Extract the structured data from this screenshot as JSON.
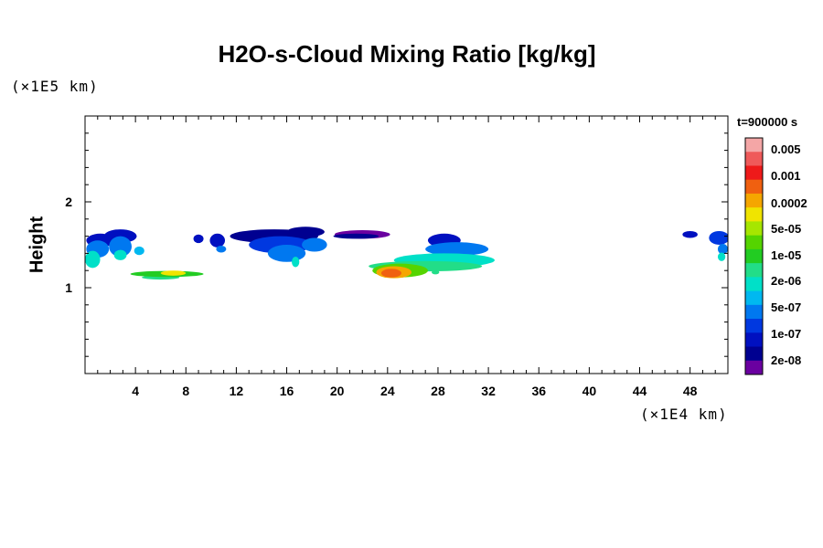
{
  "chart_data": {
    "type": "heatmap",
    "title": "H2O-s-Cloud Mixing Ratio [kg/kg]",
    "ylabel": "Height",
    "y_unit": "(×1E5 km)",
    "x_unit": "(×1E4 km)",
    "time_label": "t=900000 s",
    "xlim": [
      0,
      51
    ],
    "ylim": [
      0,
      3
    ],
    "x_ticks": [
      "4",
      "8",
      "12",
      "16",
      "20",
      "24",
      "28",
      "32",
      "36",
      "40",
      "44",
      "48"
    ],
    "y_ticks": [
      "1",
      "2"
    ],
    "colorbar": {
      "labels": [
        "0.005",
        "0.001",
        "0.0002",
        "5e-05",
        "1e-05",
        "2e-06",
        "5e-07",
        "1e-07",
        "2e-08"
      ],
      "colors": [
        "#f4a6a6",
        "#ef5a5a",
        "#ee1a1a",
        "#f06010",
        "#f5a600",
        "#f0e400",
        "#a6e600",
        "#55d400",
        "#22cc22",
        "#22dd88",
        "#00e0c8",
        "#00b8f0",
        "#0078f0",
        "#0038e0",
        "#0010c0",
        "#000090",
        "#6a00a0"
      ]
    },
    "regions": [
      {
        "cx": 1.2,
        "cy": 1.55,
        "rx": 1.1,
        "ry": 0.08,
        "level": 14
      },
      {
        "cx": 1.0,
        "cy": 1.45,
        "rx": 0.9,
        "ry": 0.1,
        "level": 12
      },
      {
        "cx": 0.6,
        "cy": 1.33,
        "rx": 0.6,
        "ry": 0.1,
        "level": 10
      },
      {
        "cx": 2.8,
        "cy": 1.6,
        "rx": 1.3,
        "ry": 0.08,
        "level": 14
      },
      {
        "cx": 2.8,
        "cy": 1.48,
        "rx": 0.9,
        "ry": 0.12,
        "level": 12
      },
      {
        "cx": 2.8,
        "cy": 1.38,
        "rx": 0.5,
        "ry": 0.06,
        "level": 10
      },
      {
        "cx": 4.3,
        "cy": 1.43,
        "rx": 0.4,
        "ry": 0.05,
        "level": 11
      },
      {
        "cx": 6.5,
        "cy": 1.16,
        "rx": 2.9,
        "ry": 0.035,
        "level": 8
      },
      {
        "cx": 6.0,
        "cy": 1.12,
        "rx": 1.5,
        "ry": 0.025,
        "level": 9
      },
      {
        "cx": 7.0,
        "cy": 1.17,
        "rx": 1.0,
        "ry": 0.03,
        "level": 5
      },
      {
        "cx": 9.0,
        "cy": 1.57,
        "rx": 0.4,
        "ry": 0.05,
        "level": 14
      },
      {
        "cx": 10.5,
        "cy": 1.55,
        "rx": 0.6,
        "ry": 0.08,
        "level": 14
      },
      {
        "cx": 10.8,
        "cy": 1.45,
        "rx": 0.4,
        "ry": 0.04,
        "level": 12
      },
      {
        "cx": 15.0,
        "cy": 1.6,
        "rx": 3.5,
        "ry": 0.08,
        "level": 15
      },
      {
        "cx": 15.5,
        "cy": 1.5,
        "rx": 2.5,
        "ry": 0.1,
        "level": 13
      },
      {
        "cx": 16.0,
        "cy": 1.4,
        "rx": 1.5,
        "ry": 0.1,
        "level": 12
      },
      {
        "cx": 17.5,
        "cy": 1.65,
        "rx": 1.5,
        "ry": 0.06,
        "level": 15
      },
      {
        "cx": 18.2,
        "cy": 1.5,
        "rx": 1.0,
        "ry": 0.08,
        "level": 12
      },
      {
        "cx": 16.7,
        "cy": 1.3,
        "rx": 0.3,
        "ry": 0.06,
        "level": 10
      },
      {
        "cx": 22.0,
        "cy": 1.62,
        "rx": 2.2,
        "ry": 0.05,
        "level": 16
      },
      {
        "cx": 21.5,
        "cy": 1.6,
        "rx": 1.8,
        "ry": 0.03,
        "level": 15
      },
      {
        "cx": 28.5,
        "cy": 1.55,
        "rx": 1.3,
        "ry": 0.08,
        "level": 14
      },
      {
        "cx": 29.5,
        "cy": 1.45,
        "rx": 2.5,
        "ry": 0.08,
        "level": 12
      },
      {
        "cx": 28.5,
        "cy": 1.32,
        "rx": 4.0,
        "ry": 0.08,
        "level": 10
      },
      {
        "cx": 27.0,
        "cy": 1.25,
        "rx": 4.5,
        "ry": 0.06,
        "level": 9
      },
      {
        "cx": 25.0,
        "cy": 1.2,
        "rx": 2.2,
        "ry": 0.08,
        "level": 7
      },
      {
        "cx": 24.5,
        "cy": 1.18,
        "rx": 1.4,
        "ry": 0.07,
        "level": 4
      },
      {
        "cx": 24.3,
        "cy": 1.17,
        "rx": 0.8,
        "ry": 0.05,
        "level": 3
      },
      {
        "cx": 27.8,
        "cy": 1.18,
        "rx": 0.3,
        "ry": 0.025,
        "level": 9
      },
      {
        "cx": 48.0,
        "cy": 1.62,
        "rx": 0.6,
        "ry": 0.04,
        "level": 14
      },
      {
        "cx": 50.3,
        "cy": 1.58,
        "rx": 0.8,
        "ry": 0.08,
        "level": 13
      },
      {
        "cx": 50.6,
        "cy": 1.45,
        "rx": 0.4,
        "ry": 0.06,
        "level": 12
      },
      {
        "cx": 50.5,
        "cy": 1.36,
        "rx": 0.3,
        "ry": 0.05,
        "level": 10
      }
    ]
  }
}
